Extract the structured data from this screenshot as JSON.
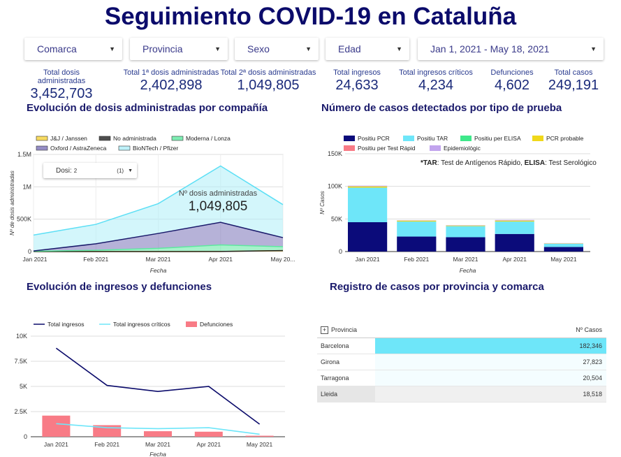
{
  "title": "Seguimiento COVID-19 en Cataluña",
  "filters": [
    {
      "label": "Comarca"
    },
    {
      "label": "Provincia"
    },
    {
      "label": "Sexo"
    },
    {
      "label": "Edad"
    },
    {
      "label": "Jan 1, 2021 - May 18, 2021"
    }
  ],
  "kpis": [
    {
      "label": "Total dosis administradas",
      "value": "3,452,703"
    },
    {
      "label": "Total 1ª dosis administradas",
      "value": "2,402,898"
    },
    {
      "label": "Total 2ª dosis administradas",
      "value": "1,049,805"
    },
    {
      "label": "Total ingresos",
      "value": "24,633"
    },
    {
      "label": "Total ingresos críticos",
      "value": "4,234"
    },
    {
      "label": "Defunciones",
      "value": "4,602"
    },
    {
      "label": "Total casos",
      "value": "249,191"
    }
  ],
  "sections": {
    "dosis": "Evolución de dosis administradas por compañía",
    "casos": "Número de casos detectados por tipo de prueba",
    "ingresos": "Evolución de ingresos y defunciones",
    "registro": "Registro de casos por provincia y comarca"
  },
  "dosis_control": {
    "label": "Dosi:",
    "value": "2",
    "count": "(1)"
  },
  "tooltip": {
    "label": "Nº dosis administradas",
    "value": "1,049,805"
  },
  "casos_note": {
    "tar_abbr": "*TAR",
    "tar_text": ": Test de Antígenos Rápido, ",
    "elisa_abbr": "ELISA",
    "elisa_text": ": Test Serológico"
  },
  "table": {
    "header": {
      "col1": "Provincia",
      "col2": "Nº Casos",
      "expand_glyph": "+"
    },
    "rows": [
      {
        "name": "Barcelona",
        "value": "182,346",
        "fraction": 1.0
      },
      {
        "name": "Girona",
        "value": "27,823",
        "fraction": 0.0
      },
      {
        "name": "Tarragona",
        "value": "20,504",
        "fraction": 0.0
      },
      {
        "name": "Lleida",
        "value": "18,518",
        "fraction": 0.0
      }
    ]
  },
  "chart_data": [
    {
      "type": "area",
      "title": "Evolución de dosis administradas por compañía",
      "categories": [
        "Jan 2021",
        "Feb 2021",
        "Mar 2021",
        "Apr 2021",
        "May 20..."
      ],
      "xlabel": "Fecha",
      "ylabel": "Nº de dosis administradas",
      "yticks": [
        "0",
        "500K",
        "1M",
        "1.5M"
      ],
      "ylim": [
        0,
        1500000
      ],
      "stacked": true,
      "legend_position": "top",
      "series": [
        {
          "name": "J&J / Janssen",
          "color": "#f5d23a",
          "values": [
            0,
            0,
            0,
            2000,
            15000
          ]
        },
        {
          "name": "No administrada",
          "color": "#222222",
          "values": [
            0,
            0,
            0,
            0,
            0
          ]
        },
        {
          "name": "Moderna / Lonza",
          "color": "#5ee8a0",
          "values": [
            5000,
            20000,
            50000,
            100000,
            60000
          ]
        },
        {
          "name": "Oxford / AstraZeneca",
          "color": "#7a72b8",
          "values": [
            5000,
            100000,
            230000,
            350000,
            140000
          ]
        },
        {
          "name": "BioNTech / Pfizer",
          "color": "#aeeef8",
          "values": [
            245000,
            300000,
            460000,
            870000,
            510000
          ]
        }
      ]
    },
    {
      "type": "bar",
      "title": "Número de casos detectados por tipo de prueba",
      "categories": [
        "Jan 2021",
        "Feb 2021",
        "Mar 2021",
        "Apr 2021",
        "May 2021"
      ],
      "xlabel": "Fecha",
      "ylabel": "Nº Casos",
      "yticks": [
        "0",
        "50K",
        "100K",
        "150K"
      ],
      "ylim": [
        0,
        150000
      ],
      "stacked": true,
      "legend_position": "top",
      "series": [
        {
          "name": "Positiu PCR",
          "color": "#0b0b7a",
          "values": [
            45000,
            23000,
            22000,
            27000,
            7000
          ]
        },
        {
          "name": "Positiu TAR",
          "color": "#6ee6f9",
          "values": [
            53000,
            23000,
            17000,
            19000,
            5000
          ]
        },
        {
          "name": "Positiu per ELISA",
          "color": "#3ee88a",
          "values": [
            0,
            0,
            0,
            0,
            0
          ]
        },
        {
          "name": "PCR probable",
          "color": "#f0d81a",
          "values": [
            2000,
            1500,
            1000,
            1500,
            500
          ]
        },
        {
          "name": "Positiu per Test Rápid",
          "color": "#f87b86",
          "values": [
            0,
            0,
            0,
            0,
            0
          ]
        },
        {
          "name": "Epidemiològic",
          "color": "#c2a4ee",
          "values": [
            1000,
            500,
            500,
            1000,
            500
          ]
        }
      ]
    },
    {
      "type": "line",
      "title": "Evolución de ingresos y defunciones",
      "categories": [
        "Jan 2021",
        "Feb 2021",
        "Mar 2021",
        "Apr 2021",
        "May 2021"
      ],
      "xlabel": "Fecha",
      "yticks": [
        "0",
        "2.5K",
        "5K",
        "7.5K",
        "10K"
      ],
      "ylim": [
        0,
        10000
      ],
      "legend_position": "top",
      "series": [
        {
          "name": "Total ingresos",
          "kind": "line",
          "color": "#0b0b6b",
          "values": [
            8800,
            5100,
            4500,
            5000,
            1250
          ]
        },
        {
          "name": "Total ingresos críticos",
          "kind": "line",
          "color": "#6ee6f9",
          "values": [
            1300,
            900,
            800,
            900,
            250
          ]
        },
        {
          "name": "Defunciones",
          "kind": "bar",
          "color": "#f87b86",
          "values": [
            2100,
            1150,
            550,
            500,
            100
          ]
        }
      ]
    }
  ]
}
